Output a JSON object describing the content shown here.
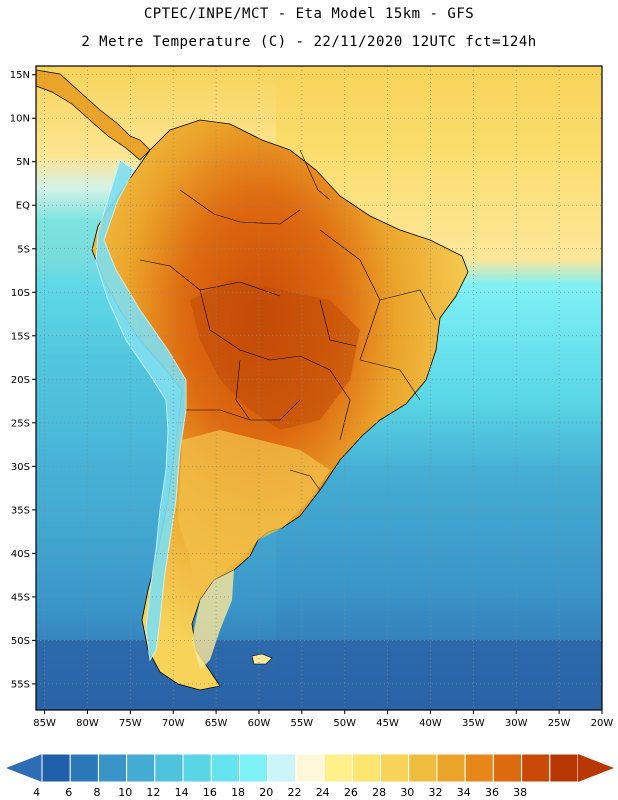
{
  "title": {
    "line1": "CPTEC/INPE/MCT -  Eta Model 15km - GFS",
    "line2": "2 Metre Temperature (C) - 22/11/2020 12UTC fct=124h"
  },
  "map": {
    "lat_labels": [
      "15N",
      "10N",
      "5N",
      "EQ",
      "5S",
      "10S",
      "15S",
      "20S",
      "25S",
      "30S",
      "35S",
      "40S",
      "45S",
      "50S",
      "55S"
    ],
    "lat_values": [
      15,
      10,
      5,
      0,
      -5,
      -10,
      -15,
      -20,
      -25,
      -30,
      -35,
      -40,
      -45,
      -50,
      -55
    ],
    "lon_labels": [
      "85W",
      "80W",
      "75W",
      "70W",
      "65W",
      "60W",
      "55W",
      "50W",
      "45W",
      "40W",
      "35W",
      "30W",
      "25W",
      "20W"
    ],
    "lon_values": [
      -85,
      -80,
      -75,
      -70,
      -65,
      -60,
      -55,
      -50,
      -45,
      -40,
      -35,
      -30,
      -25,
      -20
    ],
    "lon_range": [
      -86,
      -20
    ],
    "lat_range": [
      -58,
      16
    ]
  },
  "colorbar": {
    "labels": [
      "4",
      "6",
      "8",
      "10",
      "12",
      "14",
      "16",
      "18",
      "20",
      "22",
      "24",
      "26",
      "28",
      "30",
      "32",
      "34",
      "36",
      "38"
    ],
    "colors": [
      "#1f5fa8",
      "#2b78b8",
      "#3a94c8",
      "#44abd2",
      "#4fc2dc",
      "#59d6e6",
      "#66e4ee",
      "#7ff0f6",
      "#ccf5fb",
      "#fff8d8",
      "#fff08c",
      "#fde66f",
      "#f7d35a",
      "#efbd3e",
      "#eba42a",
      "#e7871a",
      "#de6a10",
      "#c94a08",
      "#b83805"
    ],
    "low_color": "#2e6cb5",
    "high_color": "#b83805"
  },
  "palette": {
    "ocean_deep": "#2b63a8",
    "ocean_mid": "#3f8fcb",
    "ocean_light": "#46b9dc",
    "ocean_cyan": "#58d4e6",
    "ocean_warm": "#fde79a",
    "ocean_tropic": "#fbdc6a",
    "land_hot": "#d96a12",
    "land_very_hot": "#bf4a08",
    "land_warm": "#eba42a",
    "land_mild": "#f2c04a",
    "andes_cold": "#7fdff0"
  }
}
